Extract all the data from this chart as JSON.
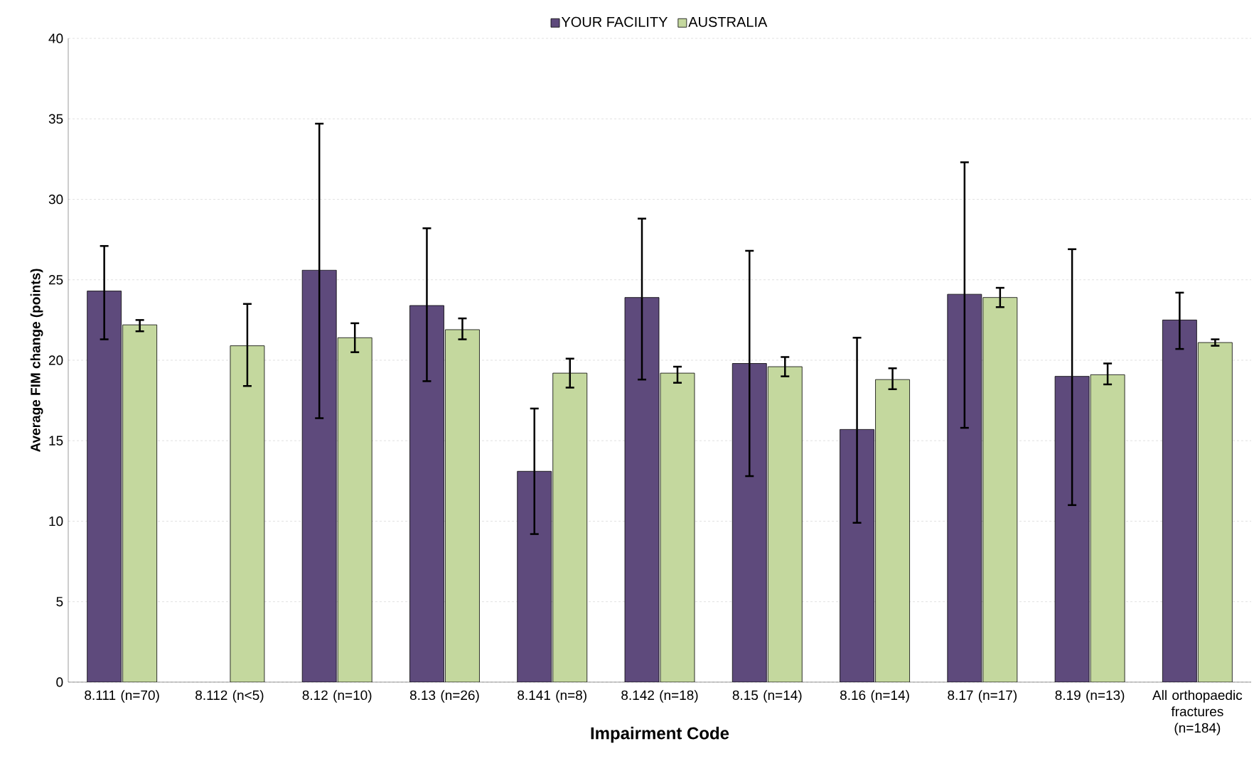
{
  "chart_data": {
    "type": "bar",
    "xlabel": "Impairment Code",
    "ylabel": "Average FIM change (points)",
    "categories": [
      "8.111 (n=70)",
      "8.112 (n<5)",
      "8.12 (n=10)",
      "8.13 (n=26)",
      "8.141 (n=8)",
      "8.142 (n=18)",
      "8.15 (n=14)",
      "8.16 (n=14)",
      "8.17 (n=17)",
      "8.19 (n=13)",
      "All orthopaedic fractures (n=184)"
    ],
    "series": [
      {
        "name": "YOUR FACILITY",
        "color": "#5e4a7c",
        "values": [
          24.3,
          null,
          25.6,
          23.4,
          13.1,
          23.9,
          19.8,
          15.7,
          24.1,
          19.0,
          22.5
        ],
        "errors": [
          [
            21.3,
            27.1
          ],
          null,
          [
            16.4,
            34.7
          ],
          [
            18.7,
            28.2
          ],
          [
            9.2,
            17.0
          ],
          [
            18.8,
            28.8
          ],
          [
            12.8,
            26.8
          ],
          [
            9.9,
            21.4
          ],
          [
            15.8,
            32.3
          ],
          [
            11.0,
            26.9
          ],
          [
            20.7,
            24.2
          ]
        ]
      },
      {
        "name": "AUSTRALIA",
        "color": "#c4d89e",
        "values": [
          22.2,
          20.9,
          21.4,
          21.9,
          19.2,
          19.2,
          19.6,
          18.8,
          23.9,
          19.1,
          21.1
        ],
        "errors": [
          [
            21.8,
            22.5
          ],
          [
            18.4,
            23.5
          ],
          [
            20.5,
            22.3
          ],
          [
            21.3,
            22.6
          ],
          [
            18.3,
            20.1
          ],
          [
            18.6,
            19.6
          ],
          [
            19.0,
            20.2
          ],
          [
            18.2,
            19.5
          ],
          [
            23.3,
            24.5
          ],
          [
            18.5,
            19.8
          ],
          [
            20.9,
            21.3
          ]
        ]
      }
    ],
    "ylim": [
      0,
      40
    ],
    "yticks": [
      0,
      5,
      10,
      15,
      20,
      25,
      30,
      35,
      40
    ],
    "grid": "y",
    "legend": "top"
  }
}
